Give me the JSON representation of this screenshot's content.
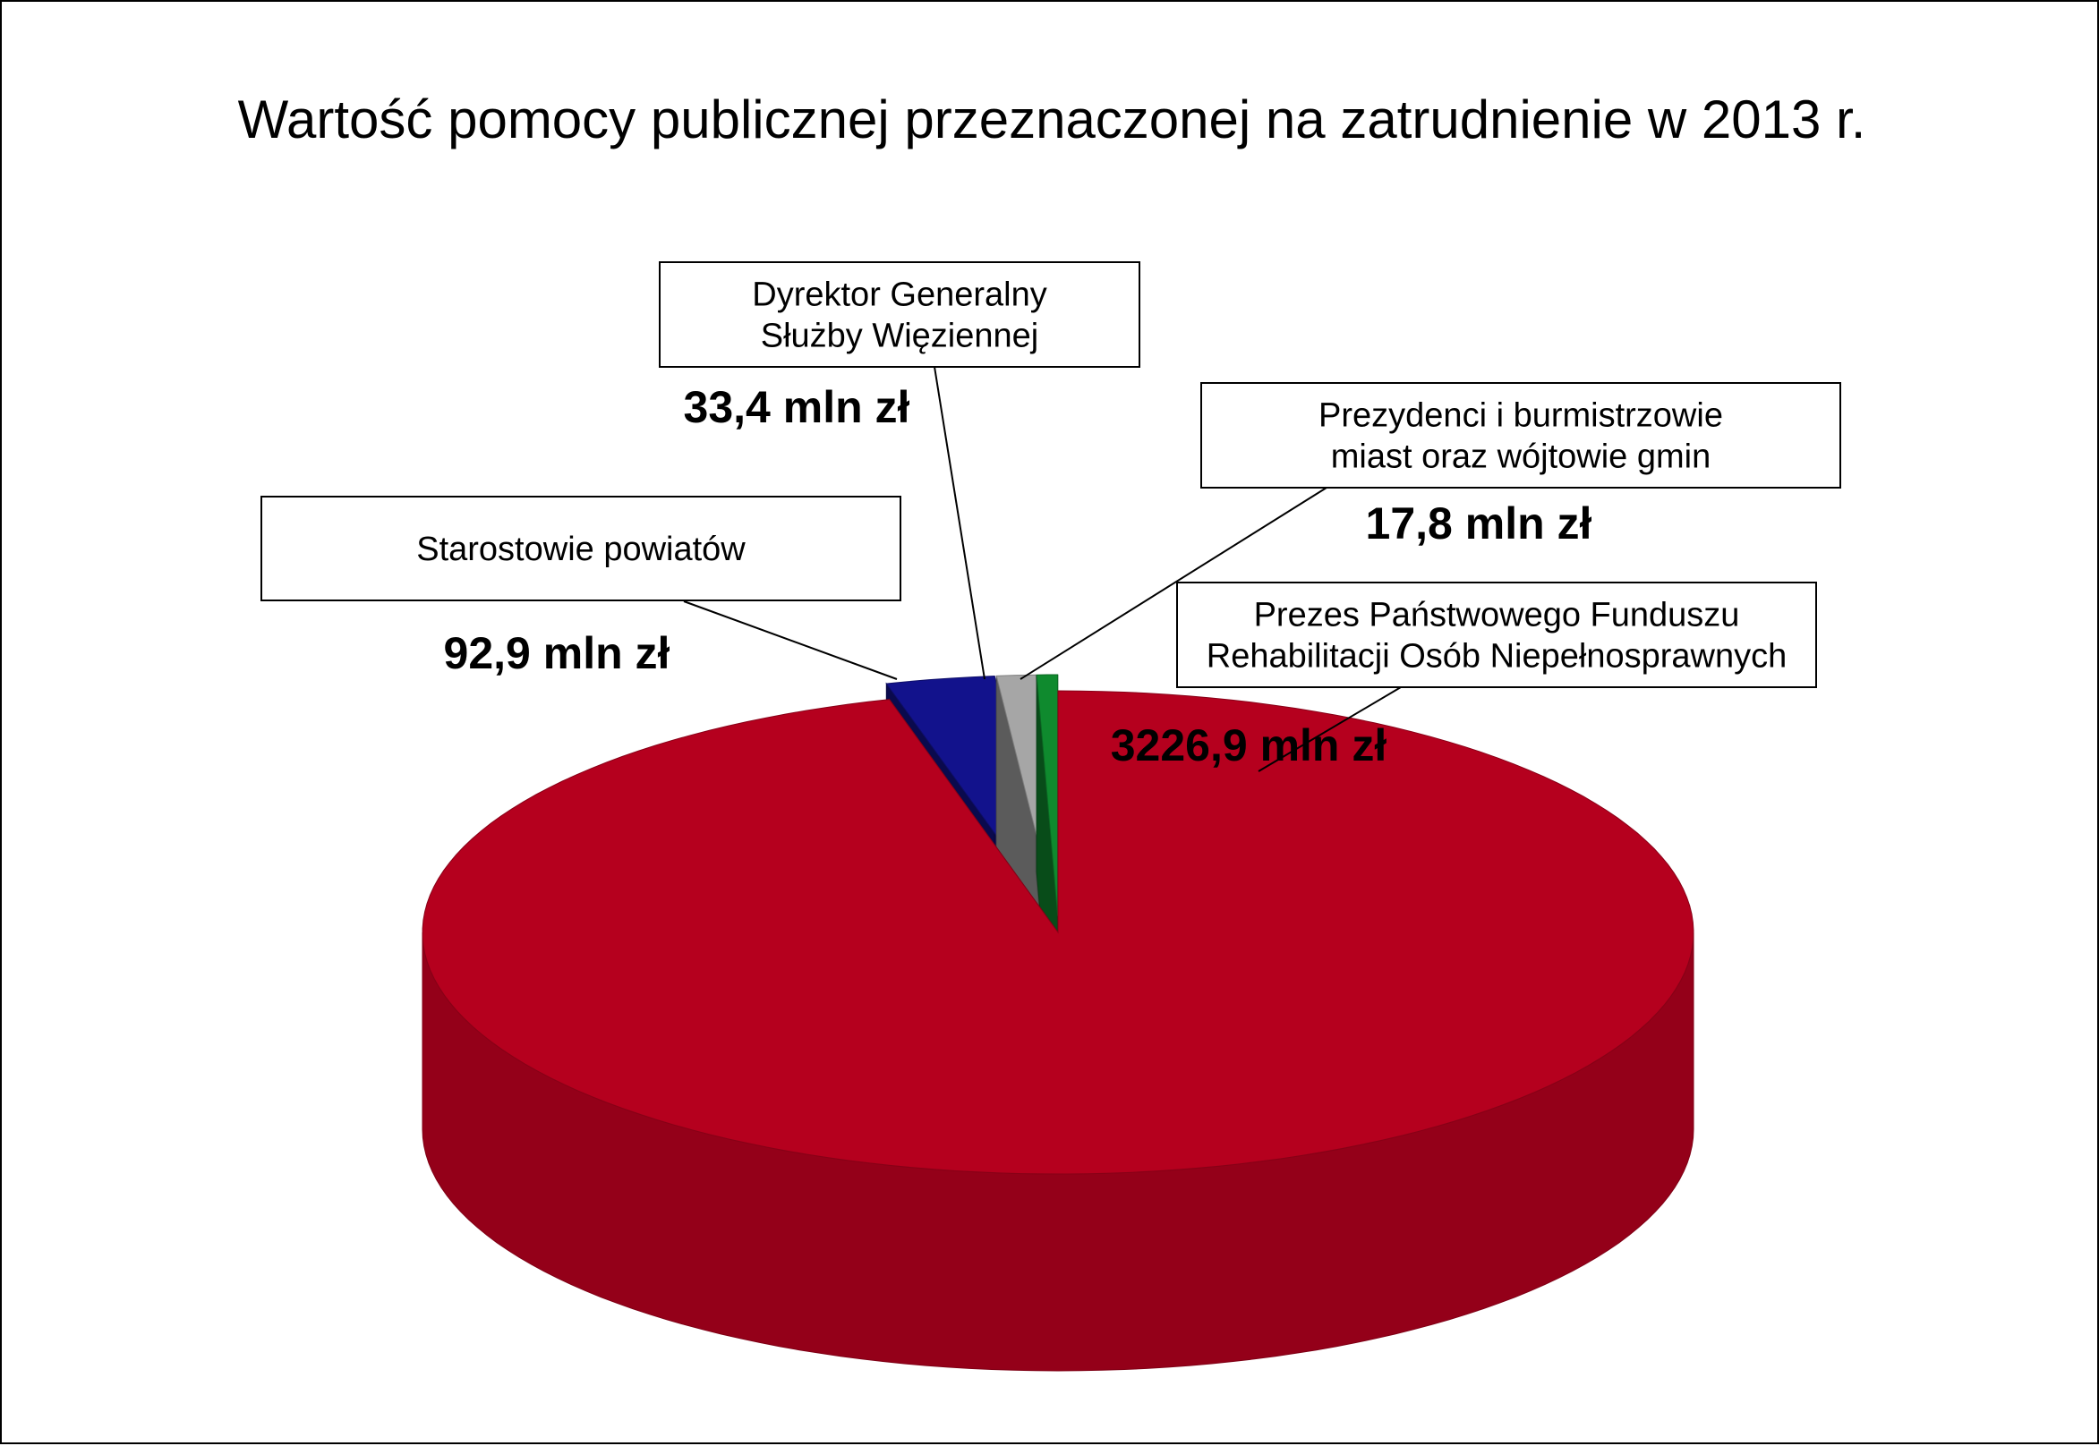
{
  "chart_data": {
    "type": "pie",
    "title": "Wartość pomocy publicznej przeznaczonej na zatrudnienie w 2013 r.",
    "unit": "mln zł",
    "slices": [
      {
        "label_lines": [
          "Prezes Państwowego Funduszu",
          "Rehabilitacji Osób Niepełnosprawnych"
        ],
        "value": 3226.9,
        "value_label": "3226,9 mln zł",
        "color": "#b5001e",
        "exploded": false
      },
      {
        "label_lines": [
          "Starostowie powiatów"
        ],
        "value": 92.9,
        "value_label": "92,9 mln zł",
        "color": "#12128c",
        "exploded": true
      },
      {
        "label_lines": [
          "Dyrektor Generalny",
          "Służby Więziennej"
        ],
        "value": 33.4,
        "value_label": "33,4 mln zł",
        "color": "#a6a6a6",
        "exploded": true
      },
      {
        "label_lines": [
          "Prezydenci i burmistrzowie",
          "miast oraz wójtowie gmin"
        ],
        "value": 17.8,
        "value_label": "17,8 mln zł",
        "color": "#0f8a2e",
        "exploded": true
      }
    ]
  }
}
